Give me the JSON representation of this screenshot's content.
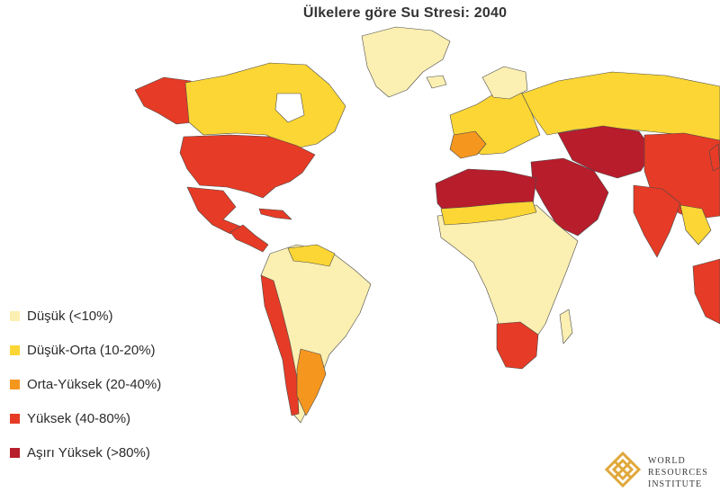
{
  "title": "Ülkelere göre Su Stresi: 2040",
  "colors": {
    "ocean": "#ffffff",
    "border": "#4a4a4a",
    "low": "#fbefb1",
    "low_medium": "#fbd634",
    "medium_high": "#f5961f",
    "high": "#e63b26",
    "extremely_high": "#b81d2c"
  },
  "legend": [
    {
      "label": "Düşük (<10%)",
      "color": "#fbefb1"
    },
    {
      "label": "Düşük-Orta (10-20%)",
      "color": "#fbd634"
    },
    {
      "label": "Orta-Yüksek (20-40%)",
      "color": "#f5961f"
    },
    {
      "label": "Yüksek (40-80%)",
      "color": "#e63b26"
    },
    {
      "label": "Aşırı Yüksek (>80%)",
      "color": "#b81d2c"
    }
  ],
  "logo": {
    "icon": "wri-knot-icon",
    "lines": [
      "WORLD",
      "RESOURCES",
      "INSTITUTE"
    ],
    "color": "#e0a83a"
  }
}
